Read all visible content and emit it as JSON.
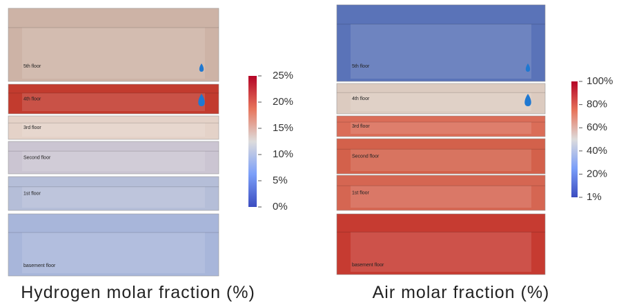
{
  "panels": [
    {
      "floors": [
        "5th floor",
        "4th floor",
        "3rd floor",
        "Second floor",
        "1st floor",
        "basement floor"
      ],
      "colorbar": {
        "ticks": [
          "25%",
          "20%",
          "15%",
          "10%",
          "5%",
          "0%"
        ]
      },
      "caption": "Hydrogen molar fraction (%)"
    },
    {
      "floors": [
        "5th floor",
        "4th floor",
        "3rd floor",
        "Second floor",
        "1st floor",
        "basement floor"
      ],
      "colorbar": {
        "ticks": [
          "100%",
          "80%",
          "60%",
          "40%",
          "20%",
          "1%"
        ]
      },
      "caption": "Air molar fraction (%)"
    }
  ]
}
